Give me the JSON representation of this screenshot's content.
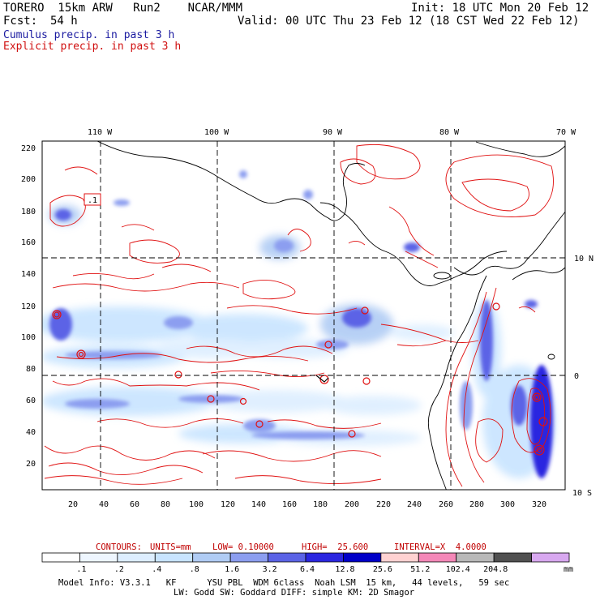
{
  "header": {
    "model": "TORERO  15km ARW   Run2    NCAR/MMM",
    "init": "Init: 18 UTC Mon 20 Feb 12",
    "fcst_label": "Fcst:",
    "fcst_value": "54 h",
    "valid": "Valid: 00 UTC Thu 23 Feb 12 (18 CST Wed 22 Feb 12)",
    "cumulus": "Cumulus precip. in past 3 h",
    "explicit": "Explicit precip. in past 3 h"
  },
  "axes": {
    "top_lon": [
      "110 W",
      "100 W",
      "90 W",
      "80 W",
      "70 W"
    ],
    "right_lat": [
      "10 N",
      "0",
      "10 S"
    ],
    "y_ticks": [
      "220",
      "200",
      "180",
      "160",
      "140",
      "120",
      "100",
      "80",
      "60",
      "40",
      "20"
    ],
    "x_ticks": [
      "20",
      "40",
      "60",
      "80",
      "100",
      "120",
      "140",
      "160",
      "180",
      "200",
      "220",
      "240",
      "260",
      "280",
      "300",
      "320"
    ],
    "box_label": ".1"
  },
  "contours": {
    "label": "CONTOURS:",
    "units": "UNITS=mm",
    "low": "LOW= 0.10000",
    "high": "HIGH=  25.600",
    "interval": "INTERVAL=X  4.0000"
  },
  "colorbar": {
    "colors": [
      "#ffffff",
      "#eef6ff",
      "#ddeeff",
      "#c8e4ff",
      "#b0ccf4",
      "#8c9ef0",
      "#5b63e6",
      "#2a26e0",
      "#0000c8",
      "#ffd2d2",
      "#f488b8",
      "#b8b8b8",
      "#505050",
      "#d8a8f0"
    ],
    "labels": [
      ".1",
      ".2",
      ".4",
      ".8",
      "1.6",
      "3.2",
      "6.4",
      "12.8",
      "25.6",
      "51.2",
      "102.4",
      "204.8"
    ],
    "unit": "mm"
  },
  "footer": {
    "line1": "Model Info: V3.3.1   KF      YSU PBL  WDM 6class  Noah LSM  15 km,   44 levels,   59 sec",
    "line2": "LW: Godd SW: Goddard DIFF: simple KM: 2D Smagor"
  }
}
